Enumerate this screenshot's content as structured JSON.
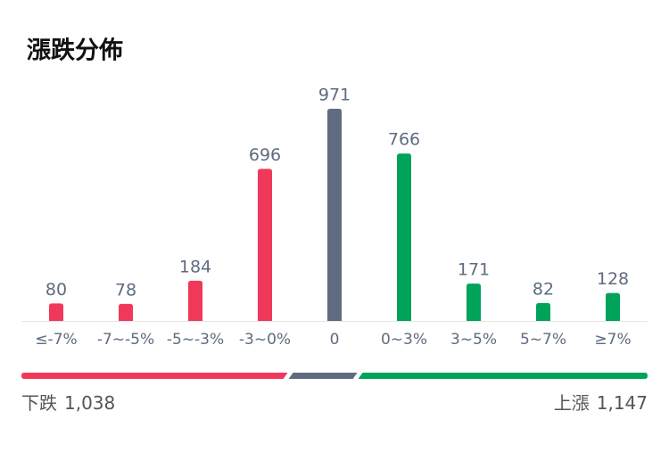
{
  "chart_data": {
    "type": "bar",
    "title": "漲跌分佈",
    "categories": [
      "≤-7%",
      "-7~-5%",
      "-5~-3%",
      "-3~0%",
      "0",
      "0~3%",
      "3~5%",
      "5~7%",
      "≥7%"
    ],
    "values": [
      80,
      78,
      184,
      696,
      971,
      766,
      171,
      82,
      128
    ],
    "colors": [
      "#f0395a",
      "#f0395a",
      "#f0395a",
      "#f0395a",
      "#5f6b7f",
      "#00a35a",
      "#00a35a",
      "#00a35a",
      "#00a35a"
    ],
    "summary": {
      "down_label": "下跌",
      "down": {
        "value": 1038,
        "label": "1,038"
      },
      "down_color": "#f0395a",
      "flat_color": "#5f6b7f",
      "up_label": "上漲",
      "up": {
        "value": 1147,
        "label": "1,147"
      },
      "up_color": "#00a35a"
    }
  }
}
